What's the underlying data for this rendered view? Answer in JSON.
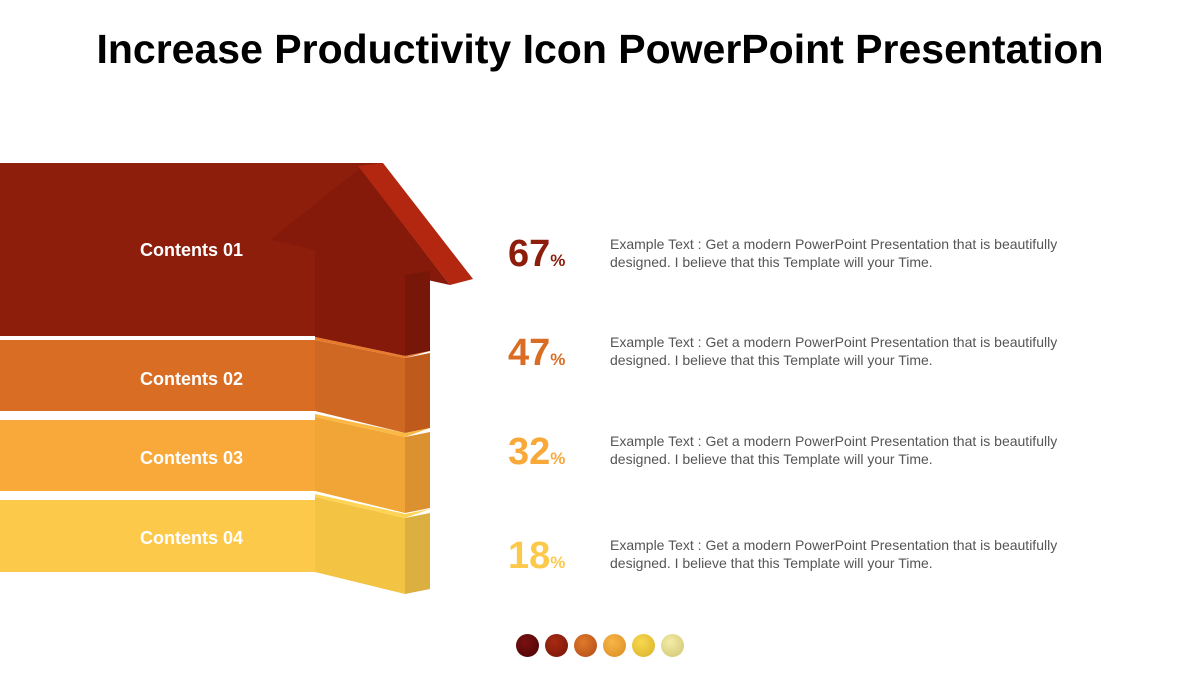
{
  "title": "Increase Productivity Icon PowerPoint Presentation",
  "items": [
    {
      "label": "Contents 01",
      "value": "67",
      "unit": "%",
      "text": "Example Text : Get a modern PowerPoint  Presentation that is beautifully designed. I believe that this Template will your Time.",
      "color": "#8E1E0C"
    },
    {
      "label": "Contents 02",
      "value": "47",
      "unit": "%",
      "text": "Example Text : Get a modern PowerPoint  Presentation that is beautifully designed. I believe that this Template will your Time.",
      "color": "#DA6D24"
    },
    {
      "label": "Contents 03",
      "value": "32",
      "unit": "%",
      "text": "Example Text : Get a modern PowerPoint  Presentation that is beautifully designed. I believe that this Template will your Time.",
      "color": "#F9A93A"
    },
    {
      "label": "Contents 04",
      "value": "18",
      "unit": "%",
      "text": "Example Text : Get a modern PowerPoint  Presentation that is beautifully designed. I believe that this Template will your Time.",
      "color": "#FDC94A"
    }
  ],
  "palette": [
    "#5A0508",
    "#8A1A0C",
    "#C85A1C",
    "#F0A030",
    "#F0C838",
    "#E8E090"
  ]
}
